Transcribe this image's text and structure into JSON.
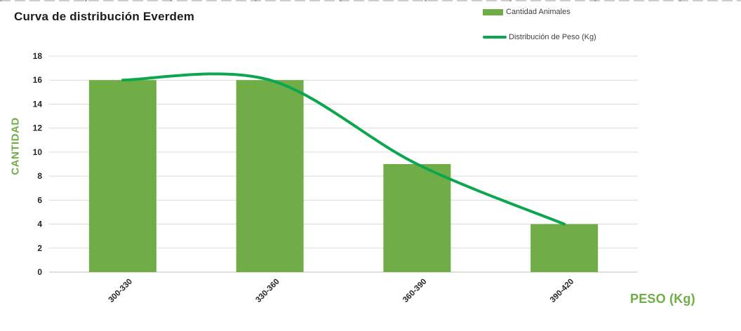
{
  "title": "Curva de distribución Everdem",
  "legend": [
    {
      "label": "Cantidad Animales",
      "swatch": "bar",
      "color": "#70AD47"
    },
    {
      "label": "Distribución de Peso (Kg)",
      "swatch": "line",
      "color": "#0CA64F"
    }
  ],
  "chart_data": {
    "type": "bar",
    "title": "Curva de distribución Everdem",
    "categories": [
      "300-330",
      "330-360",
      "360-390",
      "390-420"
    ],
    "series": [
      {
        "name": "Cantidad Animales",
        "type": "bar",
        "values": [
          16,
          16,
          9,
          4
        ],
        "color": "#70AD47"
      },
      {
        "name": "Distribución de Peso (Kg)",
        "type": "line",
        "smooth": true,
        "values": [
          16,
          16,
          9,
          4
        ],
        "color": "#0CA64F"
      }
    ],
    "xlabel": "PESO (Kg)",
    "ylabel": "CANTIDAD",
    "ylim": [
      0,
      18
    ],
    "ytick_step": 2,
    "grid": "horizontal",
    "legend_position": "top-right",
    "axis_title_color": "#70AD47",
    "tick_label_color": "#262626",
    "gridline_color": "#D9D9D9",
    "axis_line_color": "#BFBFBF"
  }
}
